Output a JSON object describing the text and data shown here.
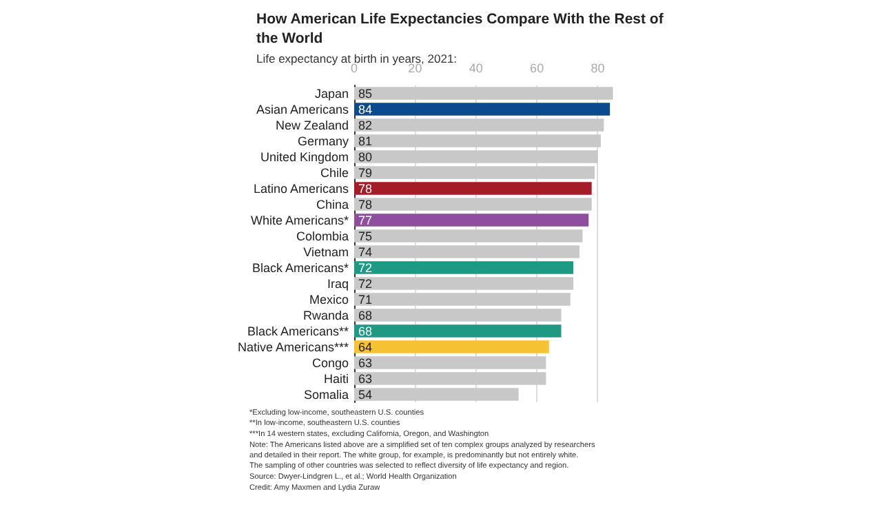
{
  "chart_data": {
    "type": "bar",
    "orientation": "horizontal",
    "title": "How American Life Expectancies Compare With the Rest of the World",
    "subtitle": "Life expectancy at birth in years, 2021:",
    "categories": [
      "Japan",
      "Asian Americans",
      "New Zealand",
      "Germany",
      "United Kingdom",
      "Chile",
      "Latino Americans",
      "China",
      "White Americans*",
      "Colombia",
      "Vietnam",
      "Black Americans*",
      "Iraq",
      "Mexico",
      "Rwanda",
      "Black Americans**",
      "Native Americans***",
      "Congo",
      "Haiti",
      "Somalia"
    ],
    "values": [
      85,
      84,
      82,
      81,
      80,
      79,
      78,
      78,
      77,
      75,
      74,
      72,
      72,
      71,
      68,
      68,
      64,
      63,
      63,
      54
    ],
    "colors": [
      "#c8c8c8",
      "#0c4a8c",
      "#c8c8c8",
      "#c8c8c8",
      "#c8c8c8",
      "#c8c8c8",
      "#a61c26",
      "#c8c8c8",
      "#8f4f9e",
      "#c8c8c8",
      "#c8c8c8",
      "#1e9a84",
      "#c8c8c8",
      "#c8c8c8",
      "#c8c8c8",
      "#1e9a84",
      "#f5c233",
      "#c8c8c8",
      "#c8c8c8",
      "#c8c8c8"
    ],
    "xlim": [
      0,
      86
    ],
    "xticks": [
      0,
      20,
      40,
      60,
      80
    ],
    "grid": "x",
    "data_labels": true,
    "annotations": [
      "*Excluding low-income, southeastern U.S. counties",
      "**In low-income, southeastern U.S. counties",
      "***In 14 western states, excluding California, Oregon, and Washington",
      "Note: The Americans listed above are a simplified set of ten complex groups analyzed by researchers and detailed in their report. The white group, for example, is predominantly but not entirely white. The sampling of other countries was selected to reflect diversity of life expectancy and region.",
      "Source: Dwyer-Lindgren L., et al.; World Health Organization",
      "Credit: Amy Maxmen and Lydia Zuraw"
    ]
  }
}
